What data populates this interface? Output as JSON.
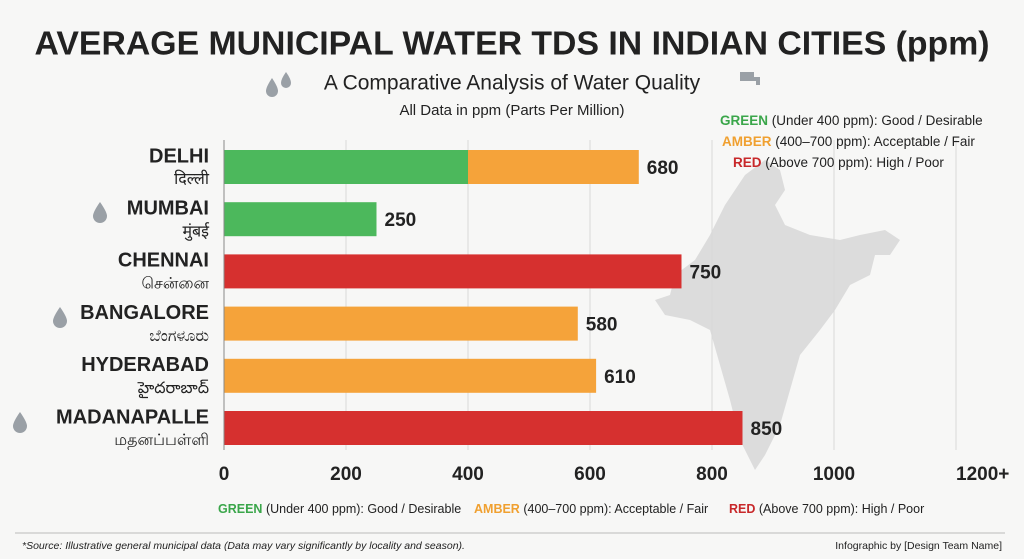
{
  "title": "AVERAGE MUNICIPAL WATER TDS IN INDIAN CITIES (ppm)",
  "subtitle": "A Comparative Analysis of Water Quality",
  "unit_note": "All Data in ppm (Parts Per Million)",
  "legend": [
    {
      "key": "GREEN",
      "text": "(Under 400 ppm): Good / Desirable",
      "color": "#3aa64a"
    },
    {
      "key": "AMBER",
      "text": "(400–700 ppm): Acceptable / Fair",
      "color": "#f0a030"
    },
    {
      "key": "RED",
      "text": "(Above 700 ppm): High / Poor",
      "color": "#c8282a"
    }
  ],
  "source": "*Source: Illustrative general municipal data (Data may vary significantly by locality and season).",
  "credit": "Infographic by [Design Team Name]",
  "chart_data": {
    "type": "bar",
    "orientation": "horizontal",
    "categories": [
      "DELHI",
      "MUMBAI",
      "CHENNAI",
      "BANGALORE",
      "HYDERABAD",
      "MADANAPALLE"
    ],
    "native_names": [
      "दिल्ली",
      "मुंबई",
      "சென்னை",
      "ಬೆಂಗಳೂರು",
      "హైదరాబాద్",
      "மதனப்பள்ளி"
    ],
    "values": [
      680,
      250,
      750,
      580,
      610,
      850
    ],
    "colors": [
      "#f5a33a",
      "#4cb85c",
      "#d6302f",
      "#f5a33a",
      "#f5a33a",
      "#d6302f"
    ],
    "split_at": [
      400,
      null,
      null,
      null,
      null,
      null
    ],
    "split_color": "#4cb85c",
    "xlim": [
      0,
      1200
    ],
    "xticks": [
      0,
      200,
      400,
      600,
      800,
      1000,
      {
        "value": 1200,
        "label": "1200+"
      }
    ],
    "grid": true
  }
}
